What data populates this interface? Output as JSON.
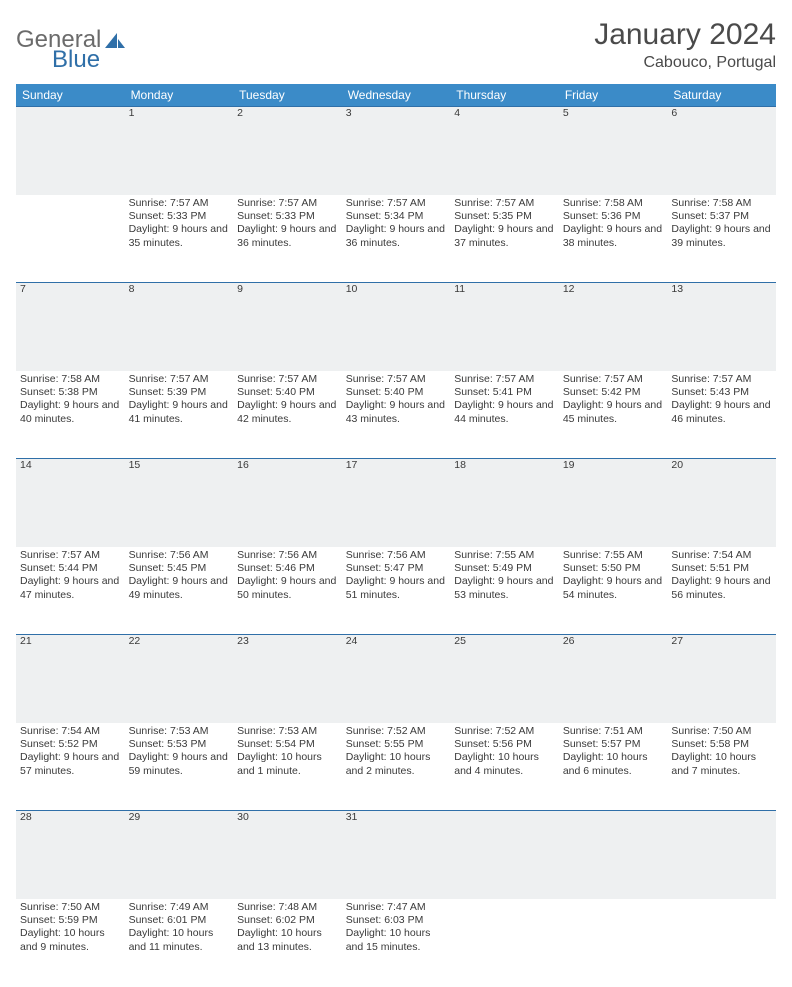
{
  "logo": {
    "text1": "General",
    "text2": "Blue"
  },
  "title": "January 2024",
  "location": "Cabouco, Portugal",
  "colors": {
    "header_bg": "#3b8bc8",
    "header_text": "#ffffff",
    "daynum_bg": "#eef0f1",
    "rule": "#2f6fa8",
    "body_text": "#3a3a3a",
    "logo_gray": "#6b6b6b",
    "logo_blue": "#2f6fa8"
  },
  "weekdays": [
    "Sunday",
    "Monday",
    "Tuesday",
    "Wednesday",
    "Thursday",
    "Friday",
    "Saturday"
  ],
  "weeks": [
    {
      "nums": [
        "",
        "1",
        "2",
        "3",
        "4",
        "5",
        "6"
      ],
      "cells": [
        null,
        {
          "sunrise": "Sunrise: 7:57 AM",
          "sunset": "Sunset: 5:33 PM",
          "daylight": "Daylight: 9 hours and 35 minutes."
        },
        {
          "sunrise": "Sunrise: 7:57 AM",
          "sunset": "Sunset: 5:33 PM",
          "daylight": "Daylight: 9 hours and 36 minutes."
        },
        {
          "sunrise": "Sunrise: 7:57 AM",
          "sunset": "Sunset: 5:34 PM",
          "daylight": "Daylight: 9 hours and 36 minutes."
        },
        {
          "sunrise": "Sunrise: 7:57 AM",
          "sunset": "Sunset: 5:35 PM",
          "daylight": "Daylight: 9 hours and 37 minutes."
        },
        {
          "sunrise": "Sunrise: 7:58 AM",
          "sunset": "Sunset: 5:36 PM",
          "daylight": "Daylight: 9 hours and 38 minutes."
        },
        {
          "sunrise": "Sunrise: 7:58 AM",
          "sunset": "Sunset: 5:37 PM",
          "daylight": "Daylight: 9 hours and 39 minutes."
        }
      ]
    },
    {
      "nums": [
        "7",
        "8",
        "9",
        "10",
        "11",
        "12",
        "13"
      ],
      "cells": [
        {
          "sunrise": "Sunrise: 7:58 AM",
          "sunset": "Sunset: 5:38 PM",
          "daylight": "Daylight: 9 hours and 40 minutes."
        },
        {
          "sunrise": "Sunrise: 7:57 AM",
          "sunset": "Sunset: 5:39 PM",
          "daylight": "Daylight: 9 hours and 41 minutes."
        },
        {
          "sunrise": "Sunrise: 7:57 AM",
          "sunset": "Sunset: 5:40 PM",
          "daylight": "Daylight: 9 hours and 42 minutes."
        },
        {
          "sunrise": "Sunrise: 7:57 AM",
          "sunset": "Sunset: 5:40 PM",
          "daylight": "Daylight: 9 hours and 43 minutes."
        },
        {
          "sunrise": "Sunrise: 7:57 AM",
          "sunset": "Sunset: 5:41 PM",
          "daylight": "Daylight: 9 hours and 44 minutes."
        },
        {
          "sunrise": "Sunrise: 7:57 AM",
          "sunset": "Sunset: 5:42 PM",
          "daylight": "Daylight: 9 hours and 45 minutes."
        },
        {
          "sunrise": "Sunrise: 7:57 AM",
          "sunset": "Sunset: 5:43 PM",
          "daylight": "Daylight: 9 hours and 46 minutes."
        }
      ]
    },
    {
      "nums": [
        "14",
        "15",
        "16",
        "17",
        "18",
        "19",
        "20"
      ],
      "cells": [
        {
          "sunrise": "Sunrise: 7:57 AM",
          "sunset": "Sunset: 5:44 PM",
          "daylight": "Daylight: 9 hours and 47 minutes."
        },
        {
          "sunrise": "Sunrise: 7:56 AM",
          "sunset": "Sunset: 5:45 PM",
          "daylight": "Daylight: 9 hours and 49 minutes."
        },
        {
          "sunrise": "Sunrise: 7:56 AM",
          "sunset": "Sunset: 5:46 PM",
          "daylight": "Daylight: 9 hours and 50 minutes."
        },
        {
          "sunrise": "Sunrise: 7:56 AM",
          "sunset": "Sunset: 5:47 PM",
          "daylight": "Daylight: 9 hours and 51 minutes."
        },
        {
          "sunrise": "Sunrise: 7:55 AM",
          "sunset": "Sunset: 5:49 PM",
          "daylight": "Daylight: 9 hours and 53 minutes."
        },
        {
          "sunrise": "Sunrise: 7:55 AM",
          "sunset": "Sunset: 5:50 PM",
          "daylight": "Daylight: 9 hours and 54 minutes."
        },
        {
          "sunrise": "Sunrise: 7:54 AM",
          "sunset": "Sunset: 5:51 PM",
          "daylight": "Daylight: 9 hours and 56 minutes."
        }
      ]
    },
    {
      "nums": [
        "21",
        "22",
        "23",
        "24",
        "25",
        "26",
        "27"
      ],
      "cells": [
        {
          "sunrise": "Sunrise: 7:54 AM",
          "sunset": "Sunset: 5:52 PM",
          "daylight": "Daylight: 9 hours and 57 minutes."
        },
        {
          "sunrise": "Sunrise: 7:53 AM",
          "sunset": "Sunset: 5:53 PM",
          "daylight": "Daylight: 9 hours and 59 minutes."
        },
        {
          "sunrise": "Sunrise: 7:53 AM",
          "sunset": "Sunset: 5:54 PM",
          "daylight": "Daylight: 10 hours and 1 minute."
        },
        {
          "sunrise": "Sunrise: 7:52 AM",
          "sunset": "Sunset: 5:55 PM",
          "daylight": "Daylight: 10 hours and 2 minutes."
        },
        {
          "sunrise": "Sunrise: 7:52 AM",
          "sunset": "Sunset: 5:56 PM",
          "daylight": "Daylight: 10 hours and 4 minutes."
        },
        {
          "sunrise": "Sunrise: 7:51 AM",
          "sunset": "Sunset: 5:57 PM",
          "daylight": "Daylight: 10 hours and 6 minutes."
        },
        {
          "sunrise": "Sunrise: 7:50 AM",
          "sunset": "Sunset: 5:58 PM",
          "daylight": "Daylight: 10 hours and 7 minutes."
        }
      ]
    },
    {
      "nums": [
        "28",
        "29",
        "30",
        "31",
        "",
        "",
        ""
      ],
      "cells": [
        {
          "sunrise": "Sunrise: 7:50 AM",
          "sunset": "Sunset: 5:59 PM",
          "daylight": "Daylight: 10 hours and 9 minutes."
        },
        {
          "sunrise": "Sunrise: 7:49 AM",
          "sunset": "Sunset: 6:01 PM",
          "daylight": "Daylight: 10 hours and 11 minutes."
        },
        {
          "sunrise": "Sunrise: 7:48 AM",
          "sunset": "Sunset: 6:02 PM",
          "daylight": "Daylight: 10 hours and 13 minutes."
        },
        {
          "sunrise": "Sunrise: 7:47 AM",
          "sunset": "Sunset: 6:03 PM",
          "daylight": "Daylight: 10 hours and 15 minutes."
        },
        null,
        null,
        null
      ]
    }
  ]
}
